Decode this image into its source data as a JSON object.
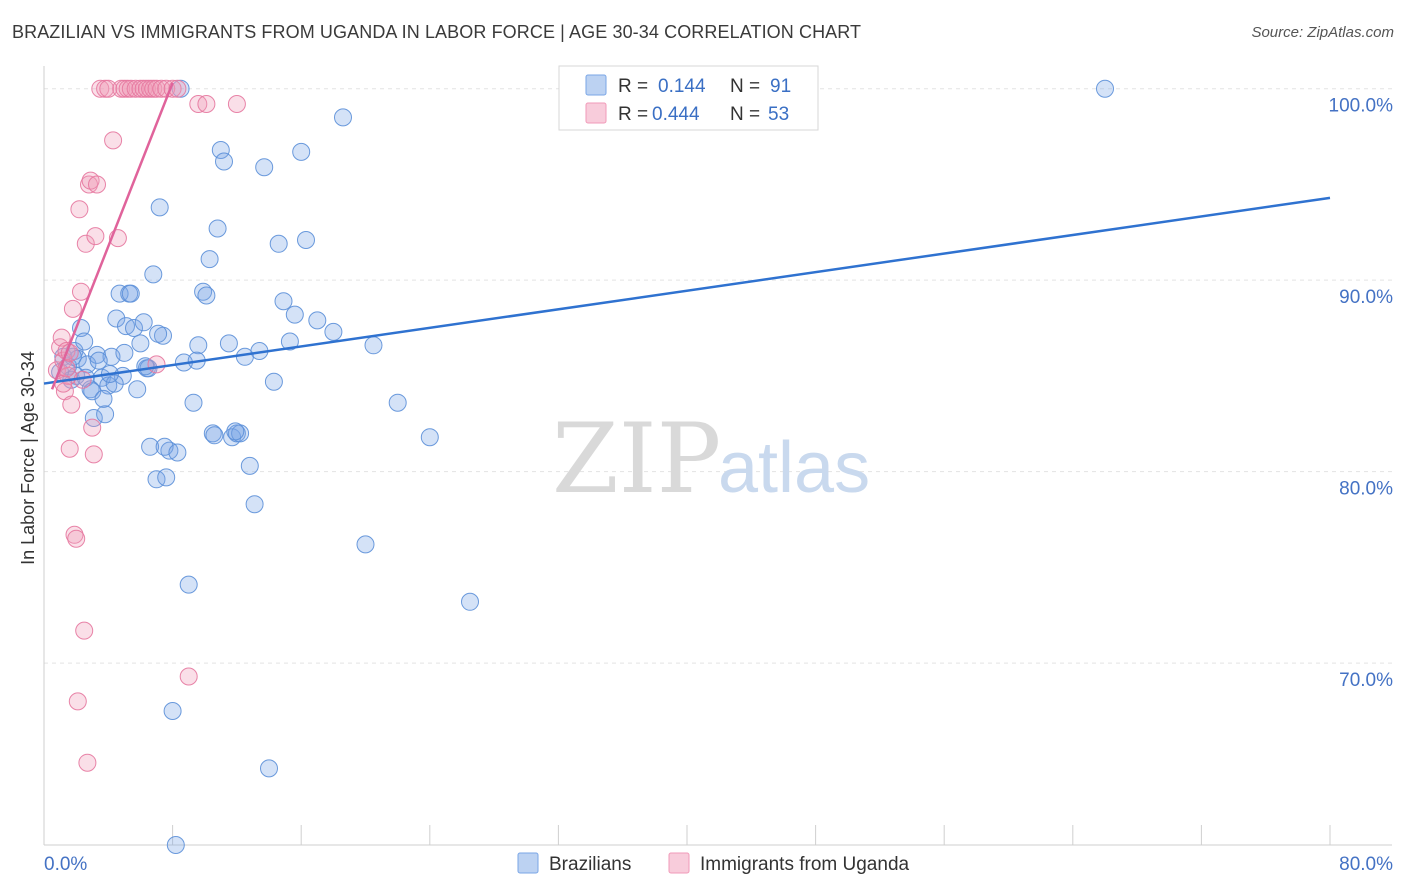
{
  "header": {
    "title": "BRAZILIAN VS IMMIGRANTS FROM UGANDA IN LABOR FORCE | AGE 30-34 CORRELATION CHART",
    "source": "Source: ZipAtlas.com"
  },
  "watermark": {
    "zip": "ZIP",
    "atlas": "atlas"
  },
  "legend": {
    "r_label": "R =",
    "n_label": "N =",
    "rows": [
      {
        "r": "0.144",
        "n": "91",
        "color": "#7aa6e6"
      },
      {
        "r": "0.444",
        "n": "53",
        "color": "#f19ab8"
      }
    ]
  },
  "bottom_legend": {
    "items": [
      {
        "label": "Brazilians",
        "color": "#7aa6e6"
      },
      {
        "label": "Immigrants from Uganda",
        "color": "#f19ab8"
      }
    ]
  },
  "chart_data": {
    "type": "scatter",
    "title": "BRAZILIAN VS IMMIGRANTS FROM UGANDA IN LABOR FORCE | AGE 30-34 CORRELATION CHART",
    "xlabel": "",
    "ylabel": "In Labor Force | Age 30-34",
    "xlim": [
      0,
      80
    ],
    "ylim": [
      60.5,
      101.5
    ],
    "x_tick_labels": [
      {
        "value": 0,
        "label": "0.0%"
      },
      {
        "value": 80,
        "label": "80.0%"
      }
    ],
    "x_minor_ticks": [
      0,
      8,
      16,
      24,
      32,
      40,
      48,
      56,
      64,
      72,
      80
    ],
    "y_ticks": [
      {
        "value": 100,
        "label": "100.0%"
      },
      {
        "value": 90,
        "label": "90.0%"
      },
      {
        "value": 80,
        "label": "80.0%"
      },
      {
        "value": 70,
        "label": "70.0%"
      }
    ],
    "grid": true,
    "series": [
      {
        "name": "Brazilians",
        "color": "#7aa6e6",
        "stroke": "#5b8fd8",
        "trend": {
          "x": [
            0,
            80
          ],
          "y": [
            84.6,
            94.3
          ],
          "color": "#2f72d0"
        },
        "points": [
          [
            1.0,
            85.2
          ],
          [
            1.2,
            86.0
          ],
          [
            1.5,
            85.5
          ],
          [
            1.7,
            84.8
          ],
          [
            1.9,
            86.3
          ],
          [
            2.1,
            85.9
          ],
          [
            2.3,
            87.5
          ],
          [
            2.5,
            86.8
          ],
          [
            2.7,
            85.6
          ],
          [
            2.9,
            84.3
          ],
          [
            3.1,
            82.8
          ],
          [
            3.3,
            86.1
          ],
          [
            3.6,
            84.9
          ],
          [
            3.8,
            83.0
          ],
          [
            4.0,
            84.5
          ],
          [
            4.2,
            86.0
          ],
          [
            4.5,
            88.0
          ],
          [
            4.7,
            89.3
          ],
          [
            4.9,
            85.0
          ],
          [
            5.1,
            87.6
          ],
          [
            5.3,
            89.3
          ],
          [
            5.6,
            87.5
          ],
          [
            5.8,
            84.3
          ],
          [
            6.0,
            86.7
          ],
          [
            6.2,
            87.8
          ],
          [
            6.4,
            85.4
          ],
          [
            6.6,
            81.3
          ],
          [
            6.8,
            90.3
          ],
          [
            7.0,
            79.6
          ],
          [
            7.2,
            93.8
          ],
          [
            7.4,
            87.1
          ],
          [
            7.6,
            79.7
          ],
          [
            7.8,
            81.1
          ],
          [
            8.0,
            67.5
          ],
          [
            8.2,
            60.5
          ],
          [
            8.5,
            100.0
          ],
          [
            8.7,
            85.7
          ],
          [
            9.0,
            74.1
          ],
          [
            9.3,
            83.6
          ],
          [
            9.6,
            86.6
          ],
          [
            9.9,
            89.4
          ],
          [
            10.1,
            89.2
          ],
          [
            10.3,
            91.1
          ],
          [
            10.5,
            82.0
          ],
          [
            10.8,
            92.7
          ],
          [
            11.0,
            96.8
          ],
          [
            11.2,
            96.2
          ],
          [
            11.5,
            86.7
          ],
          [
            11.7,
            81.8
          ],
          [
            12.0,
            82.0
          ],
          [
            12.2,
            82.0
          ],
          [
            12.5,
            86.0
          ],
          [
            12.8,
            80.3
          ],
          [
            13.1,
            78.3
          ],
          [
            13.4,
            86.3
          ],
          [
            13.7,
            95.9
          ],
          [
            14.0,
            64.5
          ],
          [
            14.3,
            84.7
          ],
          [
            14.6,
            91.9
          ],
          [
            14.9,
            88.9
          ],
          [
            15.3,
            86.8
          ],
          [
            15.6,
            88.2
          ],
          [
            16.0,
            96.7
          ],
          [
            16.3,
            92.1
          ],
          [
            17.0,
            87.9
          ],
          [
            18.0,
            87.3
          ],
          [
            18.6,
            98.5
          ],
          [
            20.0,
            76.2
          ],
          [
            20.5,
            86.6
          ],
          [
            22.0,
            83.6
          ],
          [
            24.0,
            81.8
          ],
          [
            26.5,
            73.2
          ],
          [
            66.0,
            100.0
          ],
          [
            2.0,
            85.0
          ],
          [
            3.4,
            85.8
          ],
          [
            4.4,
            84.6
          ],
          [
            5.0,
            86.2
          ],
          [
            6.5,
            85.4
          ],
          [
            7.5,
            81.3
          ],
          [
            2.6,
            84.9
          ],
          [
            1.8,
            86.0
          ],
          [
            3.0,
            84.2
          ],
          [
            4.1,
            85.1
          ],
          [
            5.4,
            89.3
          ],
          [
            6.3,
            85.5
          ],
          [
            7.1,
            87.2
          ],
          [
            8.3,
            81.0
          ],
          [
            9.5,
            85.8
          ],
          [
            10.6,
            81.9
          ],
          [
            11.9,
            82.1
          ],
          [
            3.7,
            83.8
          ]
        ]
      },
      {
        "name": "Immigrants from Uganda",
        "color": "#f19ab8",
        "stroke": "#e6779f",
        "trend": {
          "x": [
            0.5,
            8.0
          ],
          "y": [
            84.3,
            100.3
          ],
          "color": "#e0639b"
        },
        "points": [
          [
            0.8,
            85.3
          ],
          [
            1.0,
            86.5
          ],
          [
            1.1,
            87.0
          ],
          [
            1.2,
            85.8
          ],
          [
            1.3,
            84.2
          ],
          [
            1.4,
            86.3
          ],
          [
            1.5,
            85.0
          ],
          [
            1.6,
            81.2
          ],
          [
            1.7,
            83.5
          ],
          [
            1.8,
            88.5
          ],
          [
            1.9,
            76.7
          ],
          [
            2.0,
            76.5
          ],
          [
            2.1,
            68.0
          ],
          [
            2.2,
            93.7
          ],
          [
            2.3,
            89.4
          ],
          [
            2.4,
            84.8
          ],
          [
            2.5,
            71.7
          ],
          [
            2.6,
            91.9
          ],
          [
            2.7,
            64.8
          ],
          [
            2.8,
            95.0
          ],
          [
            2.9,
            95.2
          ],
          [
            3.0,
            82.3
          ],
          [
            3.1,
            80.9
          ],
          [
            3.2,
            92.3
          ],
          [
            3.3,
            95.0
          ],
          [
            3.5,
            100.0
          ],
          [
            3.8,
            100.0
          ],
          [
            4.0,
            100.0
          ],
          [
            4.3,
            97.3
          ],
          [
            4.6,
            92.2
          ],
          [
            4.8,
            100.0
          ],
          [
            5.0,
            100.0
          ],
          [
            5.2,
            100.0
          ],
          [
            5.4,
            100.0
          ],
          [
            5.7,
            100.0
          ],
          [
            6.0,
            100.0
          ],
          [
            6.2,
            100.0
          ],
          [
            6.4,
            100.0
          ],
          [
            6.6,
            100.0
          ],
          [
            6.8,
            100.0
          ],
          [
            7.0,
            100.0
          ],
          [
            7.3,
            100.0
          ],
          [
            7.6,
            100.0
          ],
          [
            8.0,
            100.0
          ],
          [
            8.3,
            100.0
          ],
          [
            9.0,
            69.3
          ],
          [
            9.6,
            99.2
          ],
          [
            10.1,
            99.2
          ],
          [
            7.0,
            85.6
          ],
          [
            1.2,
            84.6
          ],
          [
            1.4,
            85.4
          ],
          [
            1.6,
            86.2
          ],
          [
            12.0,
            99.2
          ]
        ]
      }
    ]
  }
}
